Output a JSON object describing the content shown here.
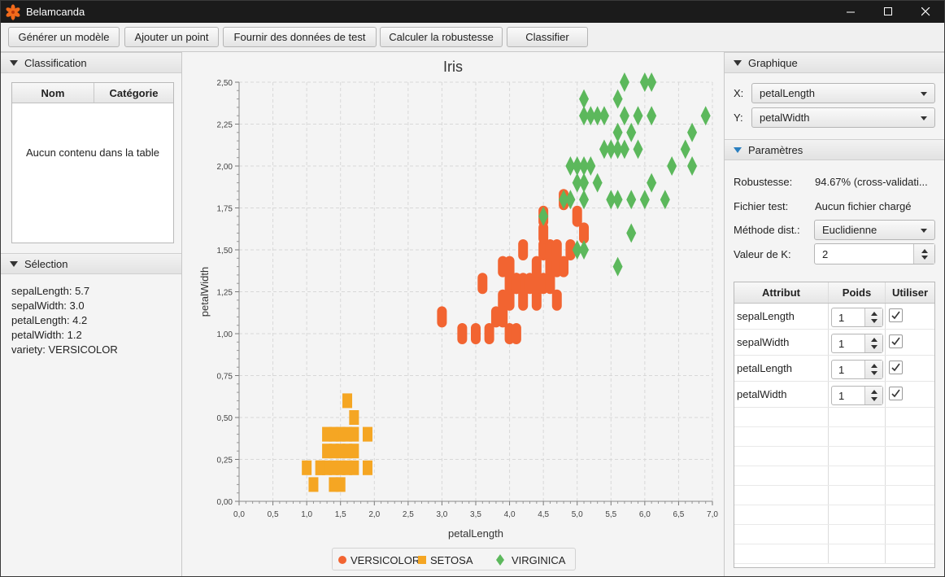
{
  "window": {
    "title": "Belamcanda"
  },
  "toolbar": {
    "buttons": [
      "Générer un modèle",
      "Ajouter un point",
      "Fournir des données de test",
      "Calculer la robustesse",
      "Classifier"
    ]
  },
  "classification": {
    "header": "Classification",
    "columns": [
      "Nom",
      "Catégorie"
    ],
    "empty_text": "Aucun contenu dans la table"
  },
  "selection": {
    "header": "Sélection",
    "lines": [
      "sepalLength: 5.7",
      "sepalWidth: 3.0",
      "petalLength: 4.2",
      "petalWidth: 1.2",
      "variety: VERSICOLOR"
    ]
  },
  "graphique": {
    "header": "Graphique",
    "x_label": "X:",
    "x_value": "petalLength",
    "y_label": "Y:",
    "y_value": "petalWidth"
  },
  "parametres": {
    "header": "Paramètres",
    "robustesse_label": "Robustesse:",
    "robustesse_value": "94.67% (cross-validati...",
    "fichier_label": "Fichier test:",
    "fichier_value": "Aucun fichier chargé",
    "methode_label": "Méthode dist.:",
    "methode_value": "Euclidienne",
    "k_label": "Valeur de K:",
    "k_value": "2",
    "attr_columns": [
      "Attribut",
      "Poids",
      "Utiliser"
    ],
    "attributes": [
      {
        "name": "sepalLength",
        "weight": "1",
        "use": true
      },
      {
        "name": "sepalWidth",
        "weight": "1",
        "use": true
      },
      {
        "name": "petalLength",
        "weight": "1",
        "use": true
      },
      {
        "name": "petalWidth",
        "weight": "1",
        "use": true
      }
    ]
  },
  "colors": {
    "versicolor": "#f26431",
    "setosa": "#f5a623",
    "virginica": "#5cb85c",
    "accent": "#2a7fc0"
  },
  "chart_data": {
    "type": "scatter",
    "title": "Iris",
    "xlabel": "petalLength",
    "ylabel": "petalWidth",
    "xlim": [
      0,
      7
    ],
    "ylim": [
      0,
      2.5
    ],
    "x_ticks": [
      "0,0",
      "0,5",
      "1,0",
      "1,5",
      "2,0",
      "2,5",
      "3,0",
      "3,5",
      "4,0",
      "4,5",
      "5,0",
      "5,5",
      "6,0",
      "6,5",
      "7,0"
    ],
    "y_ticks": [
      "0,00",
      "0,25",
      "0,50",
      "0,75",
      "1,00",
      "1,25",
      "1,50",
      "1,75",
      "2,00",
      "2,25",
      "2,50"
    ],
    "grid": true,
    "legend_position": "bottom",
    "series": [
      {
        "name": "VERSICOLOR",
        "marker": "circle",
        "points": [
          [
            3.0,
            1.1
          ],
          [
            3.3,
            1.0
          ],
          [
            3.5,
            1.0
          ],
          [
            3.6,
            1.3
          ],
          [
            3.7,
            1.0
          ],
          [
            3.8,
            1.1
          ],
          [
            3.9,
            1.1
          ],
          [
            3.9,
            1.2
          ],
          [
            3.9,
            1.4
          ],
          [
            4.0,
            1.0
          ],
          [
            4.0,
            1.2
          ],
          [
            4.0,
            1.3
          ],
          [
            4.1,
            1.0
          ],
          [
            4.1,
            1.3
          ],
          [
            4.2,
            1.2
          ],
          [
            4.2,
            1.3
          ],
          [
            4.2,
            1.5
          ],
          [
            4.3,
            1.3
          ],
          [
            4.4,
            1.2
          ],
          [
            4.4,
            1.3
          ],
          [
            4.4,
            1.4
          ],
          [
            4.5,
            1.3
          ],
          [
            4.5,
            1.5
          ],
          [
            4.5,
            1.7
          ],
          [
            4.6,
            1.3
          ],
          [
            4.6,
            1.4
          ],
          [
            4.6,
            1.5
          ],
          [
            4.7,
            1.2
          ],
          [
            4.7,
            1.4
          ],
          [
            4.7,
            1.5
          ],
          [
            4.8,
            1.4
          ],
          [
            4.8,
            1.8
          ],
          [
            4.9,
            1.5
          ],
          [
            5.0,
            1.7
          ],
          [
            5.1,
            1.6
          ],
          [
            4.5,
            1.6
          ],
          [
            4.1,
            1.3
          ],
          [
            4.0,
            1.4
          ]
        ]
      },
      {
        "name": "SETOSA",
        "marker": "square",
        "points": [
          [
            1.0,
            0.2
          ],
          [
            1.1,
            0.1
          ],
          [
            1.2,
            0.2
          ],
          [
            1.3,
            0.2
          ],
          [
            1.3,
            0.3
          ],
          [
            1.3,
            0.4
          ],
          [
            1.4,
            0.1
          ],
          [
            1.4,
            0.2
          ],
          [
            1.4,
            0.3
          ],
          [
            1.5,
            0.1
          ],
          [
            1.5,
            0.2
          ],
          [
            1.5,
            0.3
          ],
          [
            1.5,
            0.4
          ],
          [
            1.6,
            0.2
          ],
          [
            1.6,
            0.4
          ],
          [
            1.6,
            0.6
          ],
          [
            1.7,
            0.2
          ],
          [
            1.7,
            0.3
          ],
          [
            1.7,
            0.4
          ],
          [
            1.7,
            0.5
          ],
          [
            1.9,
            0.2
          ],
          [
            1.9,
            0.4
          ],
          [
            1.4,
            0.4
          ],
          [
            1.2,
            0.2
          ],
          [
            1.6,
            0.3
          ]
        ]
      },
      {
        "name": "VIRGINICA",
        "marker": "diamond",
        "points": [
          [
            4.5,
            1.7
          ],
          [
            4.8,
            1.8
          ],
          [
            4.9,
            1.8
          ],
          [
            4.9,
            2.0
          ],
          [
            5.0,
            1.5
          ],
          [
            5.0,
            1.9
          ],
          [
            5.0,
            2.0
          ],
          [
            5.1,
            1.5
          ],
          [
            5.1,
            1.8
          ],
          [
            5.1,
            1.9
          ],
          [
            5.1,
            2.0
          ],
          [
            5.1,
            2.3
          ],
          [
            5.1,
            2.4
          ],
          [
            5.2,
            2.0
          ],
          [
            5.2,
            2.3
          ],
          [
            5.3,
            1.9
          ],
          [
            5.3,
            2.3
          ],
          [
            5.4,
            2.1
          ],
          [
            5.4,
            2.3
          ],
          [
            5.5,
            1.8
          ],
          [
            5.5,
            2.1
          ],
          [
            5.6,
            1.4
          ],
          [
            5.6,
            1.8
          ],
          [
            5.6,
            2.1
          ],
          [
            5.6,
            2.2
          ],
          [
            5.6,
            2.4
          ],
          [
            5.7,
            2.1
          ],
          [
            5.7,
            2.3
          ],
          [
            5.7,
            2.5
          ],
          [
            5.8,
            1.6
          ],
          [
            5.8,
            1.8
          ],
          [
            5.8,
            2.2
          ],
          [
            5.9,
            2.1
          ],
          [
            5.9,
            2.3
          ],
          [
            6.0,
            1.8
          ],
          [
            6.0,
            2.5
          ],
          [
            6.1,
            1.9
          ],
          [
            6.1,
            2.3
          ],
          [
            6.1,
            2.5
          ],
          [
            6.3,
            1.8
          ],
          [
            6.4,
            2.0
          ],
          [
            6.6,
            2.1
          ],
          [
            6.7,
            2.0
          ],
          [
            6.7,
            2.2
          ],
          [
            6.9,
            2.3
          ]
        ]
      }
    ]
  }
}
